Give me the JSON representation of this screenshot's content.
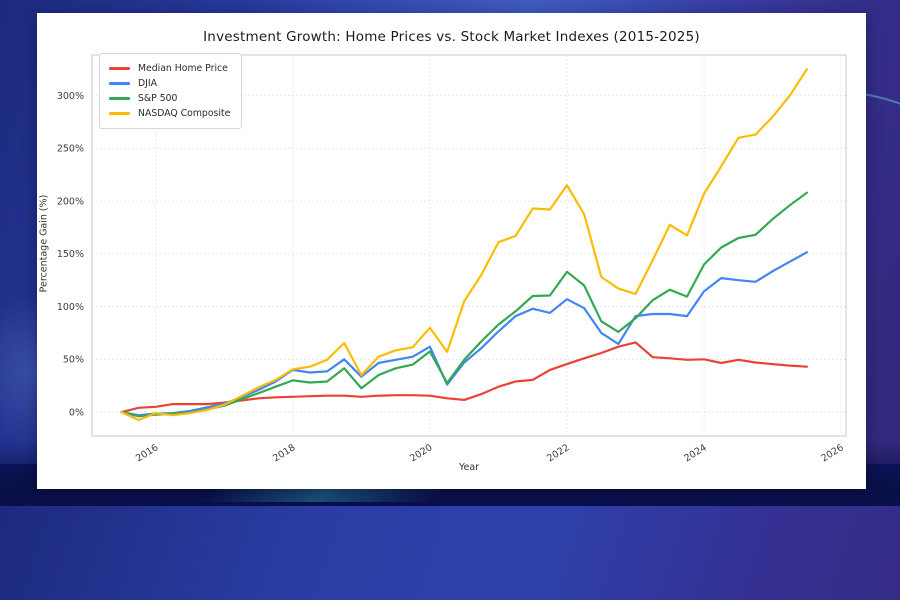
{
  "wallpaper": {
    "base_colors": [
      "#1c2a7e",
      "#2b3da4",
      "#353092"
    ],
    "bottom_band_color": "#0a0f4e",
    "accent_teal": "#3cc8d2"
  },
  "chart_data": {
    "type": "line",
    "title": "Investment Growth: Home Prices vs. Stock Market Indexes (2015-2025)",
    "xlabel": "Year",
    "ylabel": "Percentage Gain (%)",
    "grid": true,
    "legend_position": "upper left",
    "xlim": [
      2015.07,
      2026.07
    ],
    "ylim": [
      -22.7,
      338.5
    ],
    "x_ticks": [
      2016,
      2018,
      2020,
      2022,
      2024,
      2026
    ],
    "y_tick_values": [
      0,
      50,
      100,
      150,
      200,
      250,
      300
    ],
    "y_tick_labels": [
      "0%",
      "50%",
      "100%",
      "150%",
      "200%",
      "250%",
      "300%"
    ],
    "x": [
      2015.5,
      2015.75,
      2016.0,
      2016.25,
      2016.5,
      2016.75,
      2017.0,
      2017.25,
      2017.5,
      2017.75,
      2018.0,
      2018.25,
      2018.5,
      2018.75,
      2019.0,
      2019.25,
      2019.5,
      2019.75,
      2020.0,
      2020.25,
      2020.5,
      2020.75,
      2021.0,
      2021.25,
      2021.5,
      2021.75,
      2022.0,
      2022.25,
      2022.5,
      2022.75,
      2023.0,
      2023.25,
      2023.5,
      2023.75,
      2024.0,
      2024.25,
      2024.5,
      2024.75,
      2025.0,
      2025.25,
      2025.5
    ],
    "series": [
      {
        "name": "Median Home Price",
        "color": "#ea4335",
        "values": [
          0,
          4,
          5,
          7.5,
          7.5,
          7.5,
          9,
          11,
          13,
          14,
          14.5,
          15,
          15.5,
          15.5,
          14.5,
          15.5,
          16,
          16,
          15.5,
          13,
          11.5,
          17,
          24,
          29,
          30.5,
          40,
          45.5,
          51,
          56,
          62,
          66,
          52,
          51,
          49.5,
          50,
          46.5,
          49.5,
          47,
          45.5,
          44,
          43
        ]
      },
      {
        "name": "DJIA",
        "color": "#4285f4",
        "values": [
          0,
          -3,
          -1.5,
          -1,
          1,
          4.5,
          8,
          14,
          21,
          29,
          40,
          37.5,
          38.5,
          50,
          33.5,
          46.5,
          49.5,
          52.5,
          62,
          26,
          47,
          60.5,
          76.5,
          91,
          98,
          94,
          107,
          98.5,
          75,
          64.5,
          91,
          93,
          93,
          91,
          114.5,
          127,
          125,
          123.5,
          133.5,
          142.5,
          151.5
        ]
      },
      {
        "name": "S&P 500",
        "color": "#34a853",
        "values": [
          0,
          -4,
          -2.5,
          -1.5,
          -0.5,
          2.5,
          6,
          12,
          18,
          24,
          30,
          28,
          29,
          41.5,
          22.5,
          35,
          41.5,
          45,
          57.5,
          27.5,
          49.5,
          67,
          83,
          95.5,
          110,
          110.5,
          133,
          120,
          86,
          76,
          89,
          106,
          116,
          109.5,
          140,
          156,
          165,
          168,
          183,
          196,
          208
        ]
      },
      {
        "name": "NASDAQ Composite",
        "color": "#fbbc04",
        "values": [
          0,
          -7.5,
          -1,
          -3,
          -1,
          2,
          7,
          15,
          23.5,
          30.5,
          40.5,
          43,
          49.5,
          65.5,
          35,
          52.5,
          58.5,
          61.5,
          80,
          57,
          105,
          130,
          161,
          167,
          193,
          192,
          215,
          187.5,
          128,
          117,
          112,
          144,
          177.5,
          167.5,
          207,
          233,
          260,
          263,
          280,
          300,
          325
        ]
      }
    ]
  }
}
